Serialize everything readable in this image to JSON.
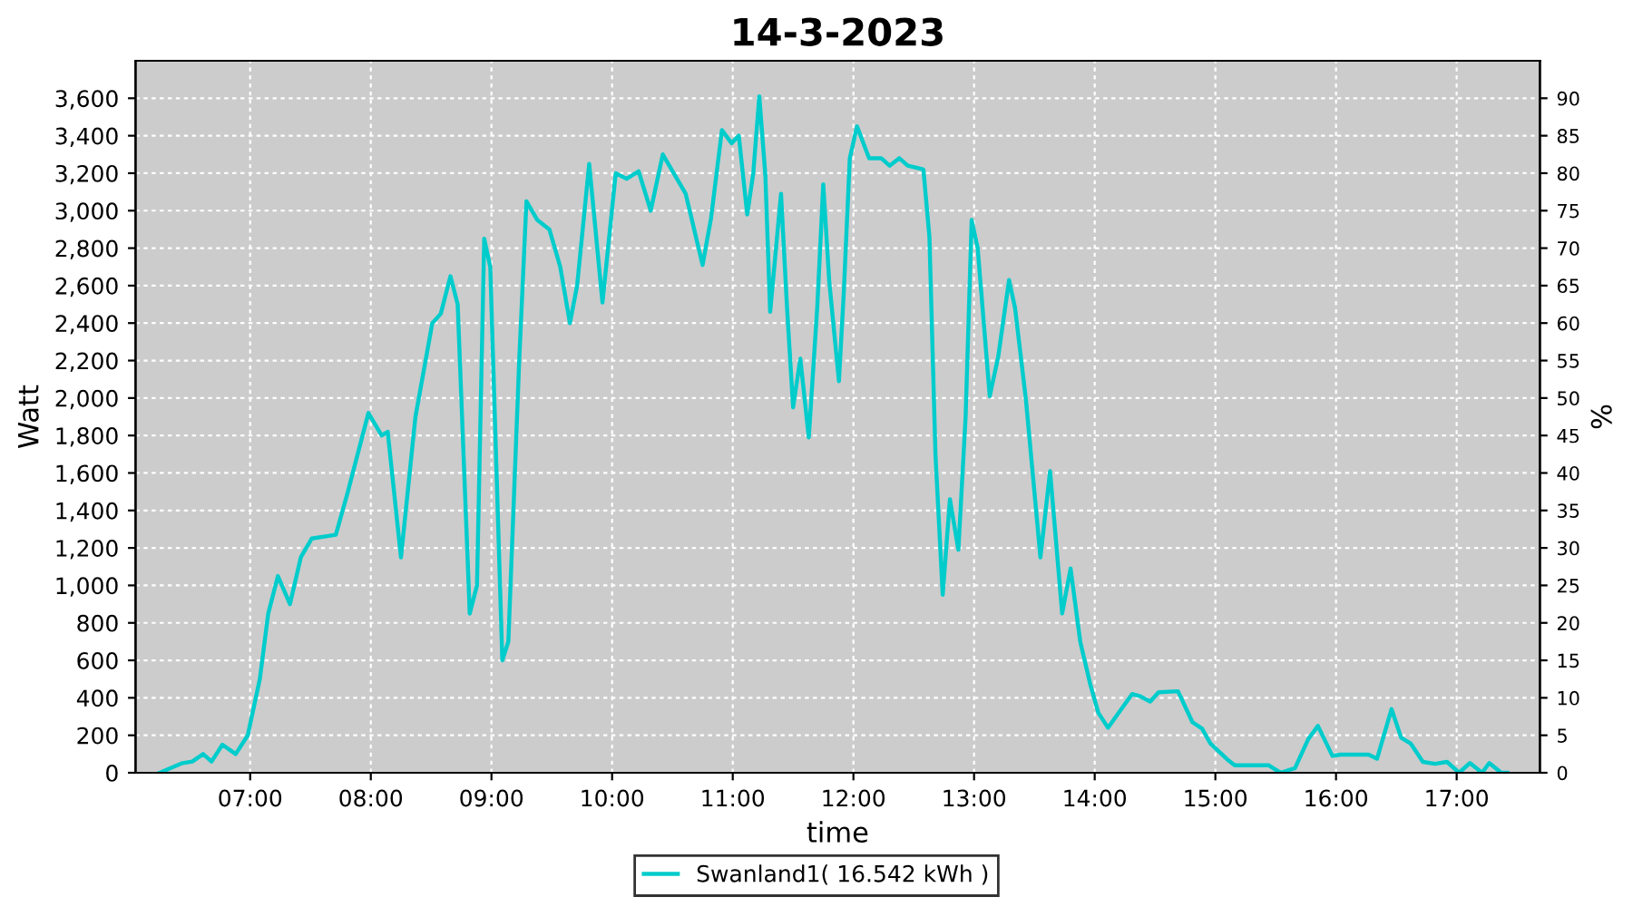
{
  "chart_data": {
    "type": "line",
    "title": "14-3-2023",
    "xlabel": "time",
    "ylabel": "Watt",
    "y2label": "%",
    "xlim": [
      6.05,
      17.69
    ],
    "ylim": [
      0,
      3800
    ],
    "y2lim": [
      0,
      95
    ],
    "xticks": [
      {
        "value": 7,
        "label": "07:00"
      },
      {
        "value": 8,
        "label": "08:00"
      },
      {
        "value": 9,
        "label": "09:00"
      },
      {
        "value": 10,
        "label": "10:00"
      },
      {
        "value": 11,
        "label": "11:00"
      },
      {
        "value": 12,
        "label": "12:00"
      },
      {
        "value": 13,
        "label": "13:00"
      },
      {
        "value": 14,
        "label": "14:00"
      },
      {
        "value": 15,
        "label": "15:00"
      },
      {
        "value": 16,
        "label": "16:00"
      },
      {
        "value": 17,
        "label": "17:00"
      }
    ],
    "yticks": [
      0,
      200,
      400,
      600,
      800,
      {
        "value": 1000,
        "label": "1,000"
      },
      {
        "value": 1200,
        "label": "1,200"
      },
      {
        "value": 1400,
        "label": "1,400"
      },
      {
        "value": 1600,
        "label": "1,600"
      },
      {
        "value": 1800,
        "label": "1,800"
      },
      {
        "value": 2000,
        "label": "2,000"
      },
      {
        "value": 2200,
        "label": "2,200"
      },
      {
        "value": 2400,
        "label": "2,400"
      },
      {
        "value": 2600,
        "label": "2,600"
      },
      {
        "value": 2800,
        "label": "2,800"
      },
      {
        "value": 3000,
        "label": "3,000"
      },
      {
        "value": 3200,
        "label": "3,200"
      },
      {
        "value": 3400,
        "label": "3,400"
      },
      {
        "value": 3600,
        "label": "3,600"
      }
    ],
    "y2ticks": [
      0,
      5,
      10,
      15,
      20,
      25,
      30,
      35,
      40,
      45,
      50,
      55,
      60,
      65,
      70,
      75,
      80,
      85,
      90
    ],
    "grid": true,
    "legend": "bottom",
    "marker": "none",
    "line_style": "solid",
    "series": [
      {
        "name": "Swanland1( 16.542 kWh )",
        "color": "#00cccc",
        "x": [
          6.25,
          6.43,
          6.52,
          6.61,
          6.68,
          6.77,
          6.88,
          6.98,
          7.08,
          7.15,
          7.23,
          7.33,
          7.42,
          7.51,
          7.71,
          7.81,
          7.98,
          8.09,
          8.14,
          8.25,
          8.37,
          8.51,
          8.58,
          8.66,
          8.72,
          8.82,
          8.88,
          8.94,
          8.99,
          9.09,
          9.14,
          9.23,
          9.29,
          9.38,
          9.48,
          9.57,
          9.65,
          9.71,
          9.81,
          9.92,
          10.03,
          10.12,
          10.22,
          10.32,
          10.42,
          10.61,
          10.75,
          10.82,
          10.91,
          10.99,
          11.05,
          11.12,
          11.17,
          11.22,
          11.27,
          11.31,
          11.35,
          11.4,
          11.45,
          11.5,
          11.56,
          11.63,
          11.7,
          11.75,
          11.8,
          11.88,
          11.92,
          11.97,
          12.03,
          12.13,
          12.23,
          12.3,
          12.38,
          12.45,
          12.58,
          12.63,
          12.68,
          12.74,
          12.8,
          12.87,
          12.93,
          12.98,
          13.03,
          13.13,
          13.2,
          13.29,
          13.34,
          13.43,
          13.55,
          13.63,
          13.73,
          13.8,
          13.88,
          13.96,
          14.03,
          14.11,
          14.21,
          14.31,
          14.37,
          14.46,
          14.53,
          14.69,
          14.81,
          14.89,
          14.96,
          15.11,
          15.16,
          15.44,
          15.54,
          15.66,
          15.77,
          15.85,
          15.97,
          16.04,
          16.27,
          16.34,
          16.46,
          16.54,
          16.62,
          16.72,
          16.82,
          16.92,
          17.02,
          17.11,
          17.21,
          17.27,
          17.37,
          17.42
        ],
        "values": [
          0,
          50,
          60,
          100,
          60,
          150,
          100,
          200,
          500,
          850,
          1050,
          900,
          1150,
          1250,
          1270,
          1500,
          1920,
          1800,
          1820,
          1150,
          1900,
          2400,
          2450,
          2650,
          2500,
          850,
          1000,
          2850,
          2700,
          600,
          700,
          2200,
          3050,
          2950,
          2900,
          2700,
          2400,
          2600,
          3250,
          2510,
          3200,
          3170,
          3210,
          3000,
          3300,
          3090,
          2710,
          2960,
          3430,
          3360,
          3400,
          2980,
          3200,
          3610,
          3190,
          2460,
          2740,
          3090,
          2480,
          1950,
          2210,
          1790,
          2480,
          3140,
          2620,
          2090,
          2560,
          3280,
          3450,
          3280,
          3280,
          3240,
          3280,
          3240,
          3220,
          2860,
          1700,
          950,
          1460,
          1190,
          1900,
          2950,
          2800,
          2010,
          2220,
          2630,
          2480,
          1990,
          1150,
          1610,
          850,
          1090,
          700,
          480,
          320,
          240,
          330,
          420,
          410,
          380,
          430,
          435,
          270,
          235,
          155,
          65,
          40,
          40,
          0,
          25,
          180,
          250,
          90,
          97,
          97,
          75,
          340,
          187,
          155,
          58,
          48,
          58,
          0,
          52,
          0,
          52,
          0,
          0
        ]
      }
    ]
  }
}
